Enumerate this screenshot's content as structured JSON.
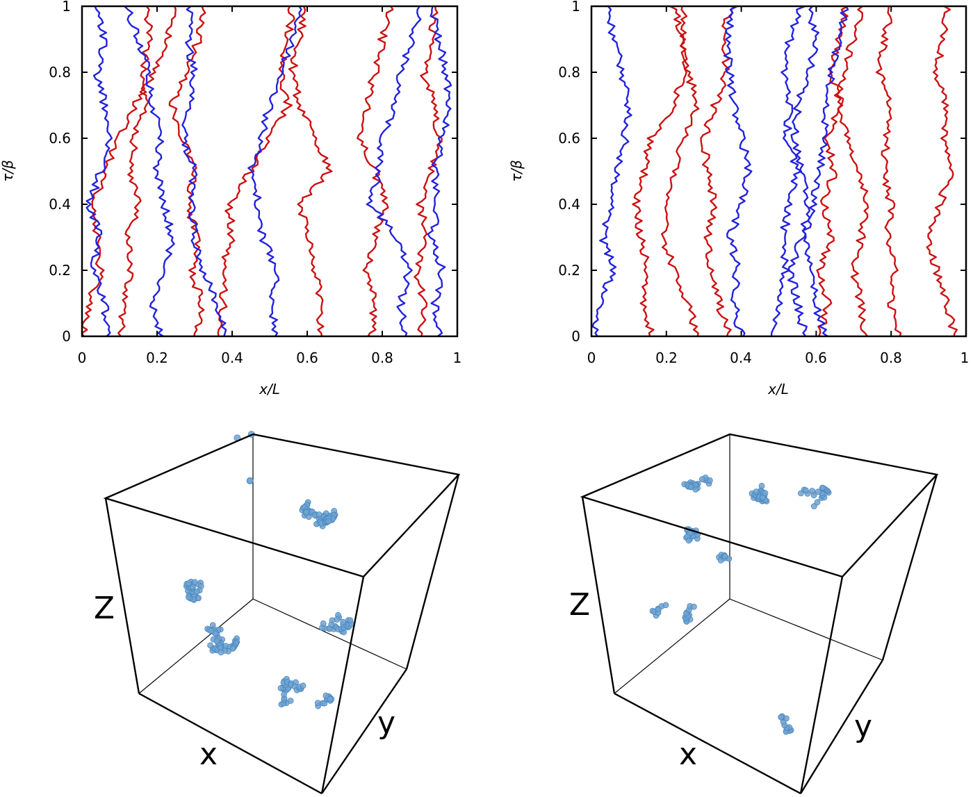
{
  "chart_data": [
    {
      "type": "line",
      "panel": "top-left",
      "xlabel": "x/L",
      "ylabel": "τ/β",
      "xlim": [
        0,
        1
      ],
      "ylim": [
        0,
        1
      ],
      "xticks": [
        "0",
        "0.2",
        "0.4",
        "0.6",
        "0.8",
        "1"
      ],
      "yticks": [
        "0",
        "0.2",
        "0.4",
        "0.6",
        "0.8",
        "1"
      ],
      "grid": false,
      "series_colors": {
        "red": "#cc1111",
        "blue": "#2222dd"
      },
      "series": [
        {
          "color": "red",
          "x": [
            0.1,
            0.11,
            0.13,
            0.12,
            0.15,
            0.13,
            0.14,
            0.17,
            0.16,
            0.18,
            0.17
          ]
        },
        {
          "color": "red",
          "x": [
            0.0,
            0.02,
            0.05,
            0.04,
            0.03,
            0.06,
            0.1,
            0.14,
            0.19,
            0.23,
            0.25
          ]
        },
        {
          "color": "red",
          "x": [
            0.3,
            0.32,
            0.29,
            0.31,
            0.28,
            0.3,
            0.27,
            0.24,
            0.28,
            0.31,
            0.32
          ]
        },
        {
          "color": "red",
          "x": [
            0.36,
            0.38,
            0.37,
            0.4,
            0.39,
            0.45,
            0.5,
            0.55,
            0.53,
            0.55,
            0.56
          ]
        },
        {
          "color": "red",
          "x": [
            0.63,
            0.64,
            0.62,
            0.6,
            0.58,
            0.66,
            0.62,
            0.58,
            0.56,
            0.58,
            0.6
          ]
        },
        {
          "color": "red",
          "x": [
            0.77,
            0.78,
            0.76,
            0.78,
            0.81,
            0.78,
            0.74,
            0.76,
            0.78,
            0.8,
            0.82
          ]
        },
        {
          "color": "red",
          "x": [
            0.9,
            0.91,
            0.89,
            0.92,
            0.9,
            0.93,
            0.95,
            0.94,
            0.91,
            0.93,
            0.95
          ]
        },
        {
          "color": "blue",
          "x": [
            0.21,
            0.19,
            0.22,
            0.24,
            0.22,
            0.2,
            0.21,
            0.19,
            0.18,
            0.15,
            0.12
          ]
        },
        {
          "color": "blue",
          "x": [
            0.38,
            0.36,
            0.32,
            0.3,
            0.29,
            0.3,
            0.27,
            0.29,
            0.3,
            0.28,
            0.29
          ]
        },
        {
          "color": "blue",
          "x": [
            0.52,
            0.5,
            0.52,
            0.48,
            0.47,
            0.45,
            0.48,
            0.5,
            0.53,
            0.56,
            0.58
          ]
        },
        {
          "color": "blue",
          "x": [
            0.86,
            0.85,
            0.87,
            0.84,
            0.77,
            0.79,
            0.8,
            0.83,
            0.85,
            0.88,
            0.9
          ]
        },
        {
          "color": "blue",
          "x": [
            0.95,
            0.94,
            0.96,
            0.93,
            0.95,
            0.94,
            0.96,
            0.98,
            0.97,
            0.95,
            0.93
          ]
        },
        {
          "color": "blue",
          "x": [
            0.07,
            0.06,
            0.03,
            0.05,
            0.02,
            0.05,
            0.08,
            0.06,
            0.04,
            0.06,
            0.03
          ]
        }
      ]
    },
    {
      "type": "line",
      "panel": "top-right",
      "xlabel": "x/L",
      "ylabel": "τ/β",
      "xlim": [
        0,
        1
      ],
      "ylim": [
        0,
        1
      ],
      "xticks": [
        "0",
        "0.2",
        "0.4",
        "0.6",
        "0.8",
        "1"
      ],
      "yticks": [
        "0",
        "0.2",
        "0.4",
        "0.6",
        "0.8",
        "1"
      ],
      "grid": false,
      "series_colors": {
        "red": "#cc1111",
        "blue": "#2222dd"
      },
      "series": [
        {
          "color": "red",
          "x": [
            0.16,
            0.14,
            0.15,
            0.13,
            0.12,
            0.14,
            0.16,
            0.22,
            0.25,
            0.24,
            0.22
          ]
        },
        {
          "color": "red",
          "x": [
            0.28,
            0.26,
            0.22,
            0.19,
            0.2,
            0.22,
            0.25,
            0.28,
            0.26,
            0.24,
            0.25
          ]
        },
        {
          "color": "red",
          "x": [
            0.37,
            0.34,
            0.32,
            0.31,
            0.33,
            0.31,
            0.3,
            0.33,
            0.36,
            0.35,
            0.37
          ]
        },
        {
          "color": "red",
          "x": [
            0.61,
            0.63,
            0.61,
            0.64,
            0.62,
            0.65,
            0.63,
            0.66,
            0.64,
            0.66,
            0.68
          ]
        },
        {
          "color": "red",
          "x": [
            0.73,
            0.72,
            0.7,
            0.72,
            0.74,
            0.71,
            0.69,
            0.66,
            0.67,
            0.7,
            0.72
          ]
        },
        {
          "color": "red",
          "x": [
            0.82,
            0.8,
            0.81,
            0.79,
            0.8,
            0.78,
            0.79,
            0.8,
            0.77,
            0.78,
            0.8
          ]
        },
        {
          "color": "red",
          "x": [
            0.97,
            0.95,
            0.92,
            0.9,
            0.93,
            0.96,
            0.94,
            0.95,
            0.92,
            0.94,
            0.95
          ]
        },
        {
          "color": "blue",
          "x": [
            0.01,
            0.02,
            0.06,
            0.03,
            0.05,
            0.07,
            0.09,
            0.1,
            0.08,
            0.06,
            0.04
          ]
        },
        {
          "color": "blue",
          "x": [
            0.4,
            0.38,
            0.39,
            0.37,
            0.4,
            0.42,
            0.4,
            0.38,
            0.37,
            0.36,
            0.38
          ]
        },
        {
          "color": "blue",
          "x": [
            0.48,
            0.5,
            0.52,
            0.51,
            0.53,
            0.55,
            0.52,
            0.53,
            0.51,
            0.53,
            0.56
          ]
        },
        {
          "color": "blue",
          "x": [
            0.57,
            0.55,
            0.53,
            0.56,
            0.58,
            0.56,
            0.54,
            0.55,
            0.58,
            0.6,
            0.58
          ]
        },
        {
          "color": "blue",
          "x": [
            0.62,
            0.6,
            0.58,
            0.57,
            0.59,
            0.61,
            0.62,
            0.63,
            0.64,
            0.66,
            0.68
          ]
        }
      ]
    },
    {
      "type": "scatter",
      "panel": "bottom-left",
      "subtype": "3d-cube",
      "axis_labels": {
        "x": "x",
        "y": "y",
        "z": "Z"
      },
      "colors": {
        "bead": "#6fa6d6",
        "bead_edge": "#4a83b8",
        "link": "#e8804a"
      },
      "clusters": [
        {
          "x": 0.15,
          "y": 0.9,
          "z": 0.95,
          "count": 1
        },
        {
          "x": 0.2,
          "y": 0.95,
          "z": 0.97,
          "count": 1
        },
        {
          "x": 0.3,
          "y": 0.75,
          "z": 0.88,
          "count": 2
        },
        {
          "x": 0.55,
          "y": 0.85,
          "z": 0.85,
          "count": 60
        },
        {
          "x": 0.25,
          "y": 0.3,
          "z": 0.55,
          "count": 30
        },
        {
          "x": 0.35,
          "y": 0.2,
          "z": 0.4,
          "count": 45
        },
        {
          "x": 0.9,
          "y": 0.4,
          "z": 0.6,
          "count": 30
        },
        {
          "x": 0.75,
          "y": 0.2,
          "z": 0.25,
          "count": 30
        },
        {
          "x": 0.95,
          "y": 0.15,
          "z": 0.35,
          "count": 12
        }
      ]
    },
    {
      "type": "scatter",
      "panel": "bottom-right",
      "subtype": "3d-cube",
      "axis_labels": {
        "x": "x",
        "y": "y",
        "z": "Z"
      },
      "colors": {
        "bead": "#6fa6d6",
        "bead_edge": "#4a83b8",
        "link": "#e8804a"
      },
      "clusters": [
        {
          "x": 0.2,
          "y": 0.7,
          "z": 0.85,
          "count": 25
        },
        {
          "x": 0.45,
          "y": 0.8,
          "z": 0.9,
          "count": 30
        },
        {
          "x": 0.7,
          "y": 0.85,
          "z": 0.9,
          "count": 22
        },
        {
          "x": 0.25,
          "y": 0.5,
          "z": 0.7,
          "count": 22
        },
        {
          "x": 0.4,
          "y": 0.45,
          "z": 0.68,
          "count": 8
        },
        {
          "x": 0.15,
          "y": 0.2,
          "z": 0.4,
          "count": 8
        },
        {
          "x": 0.3,
          "y": 0.25,
          "z": 0.4,
          "count": 12
        },
        {
          "x": 0.85,
          "y": 0.2,
          "z": 0.15,
          "count": 12
        }
      ]
    }
  ]
}
